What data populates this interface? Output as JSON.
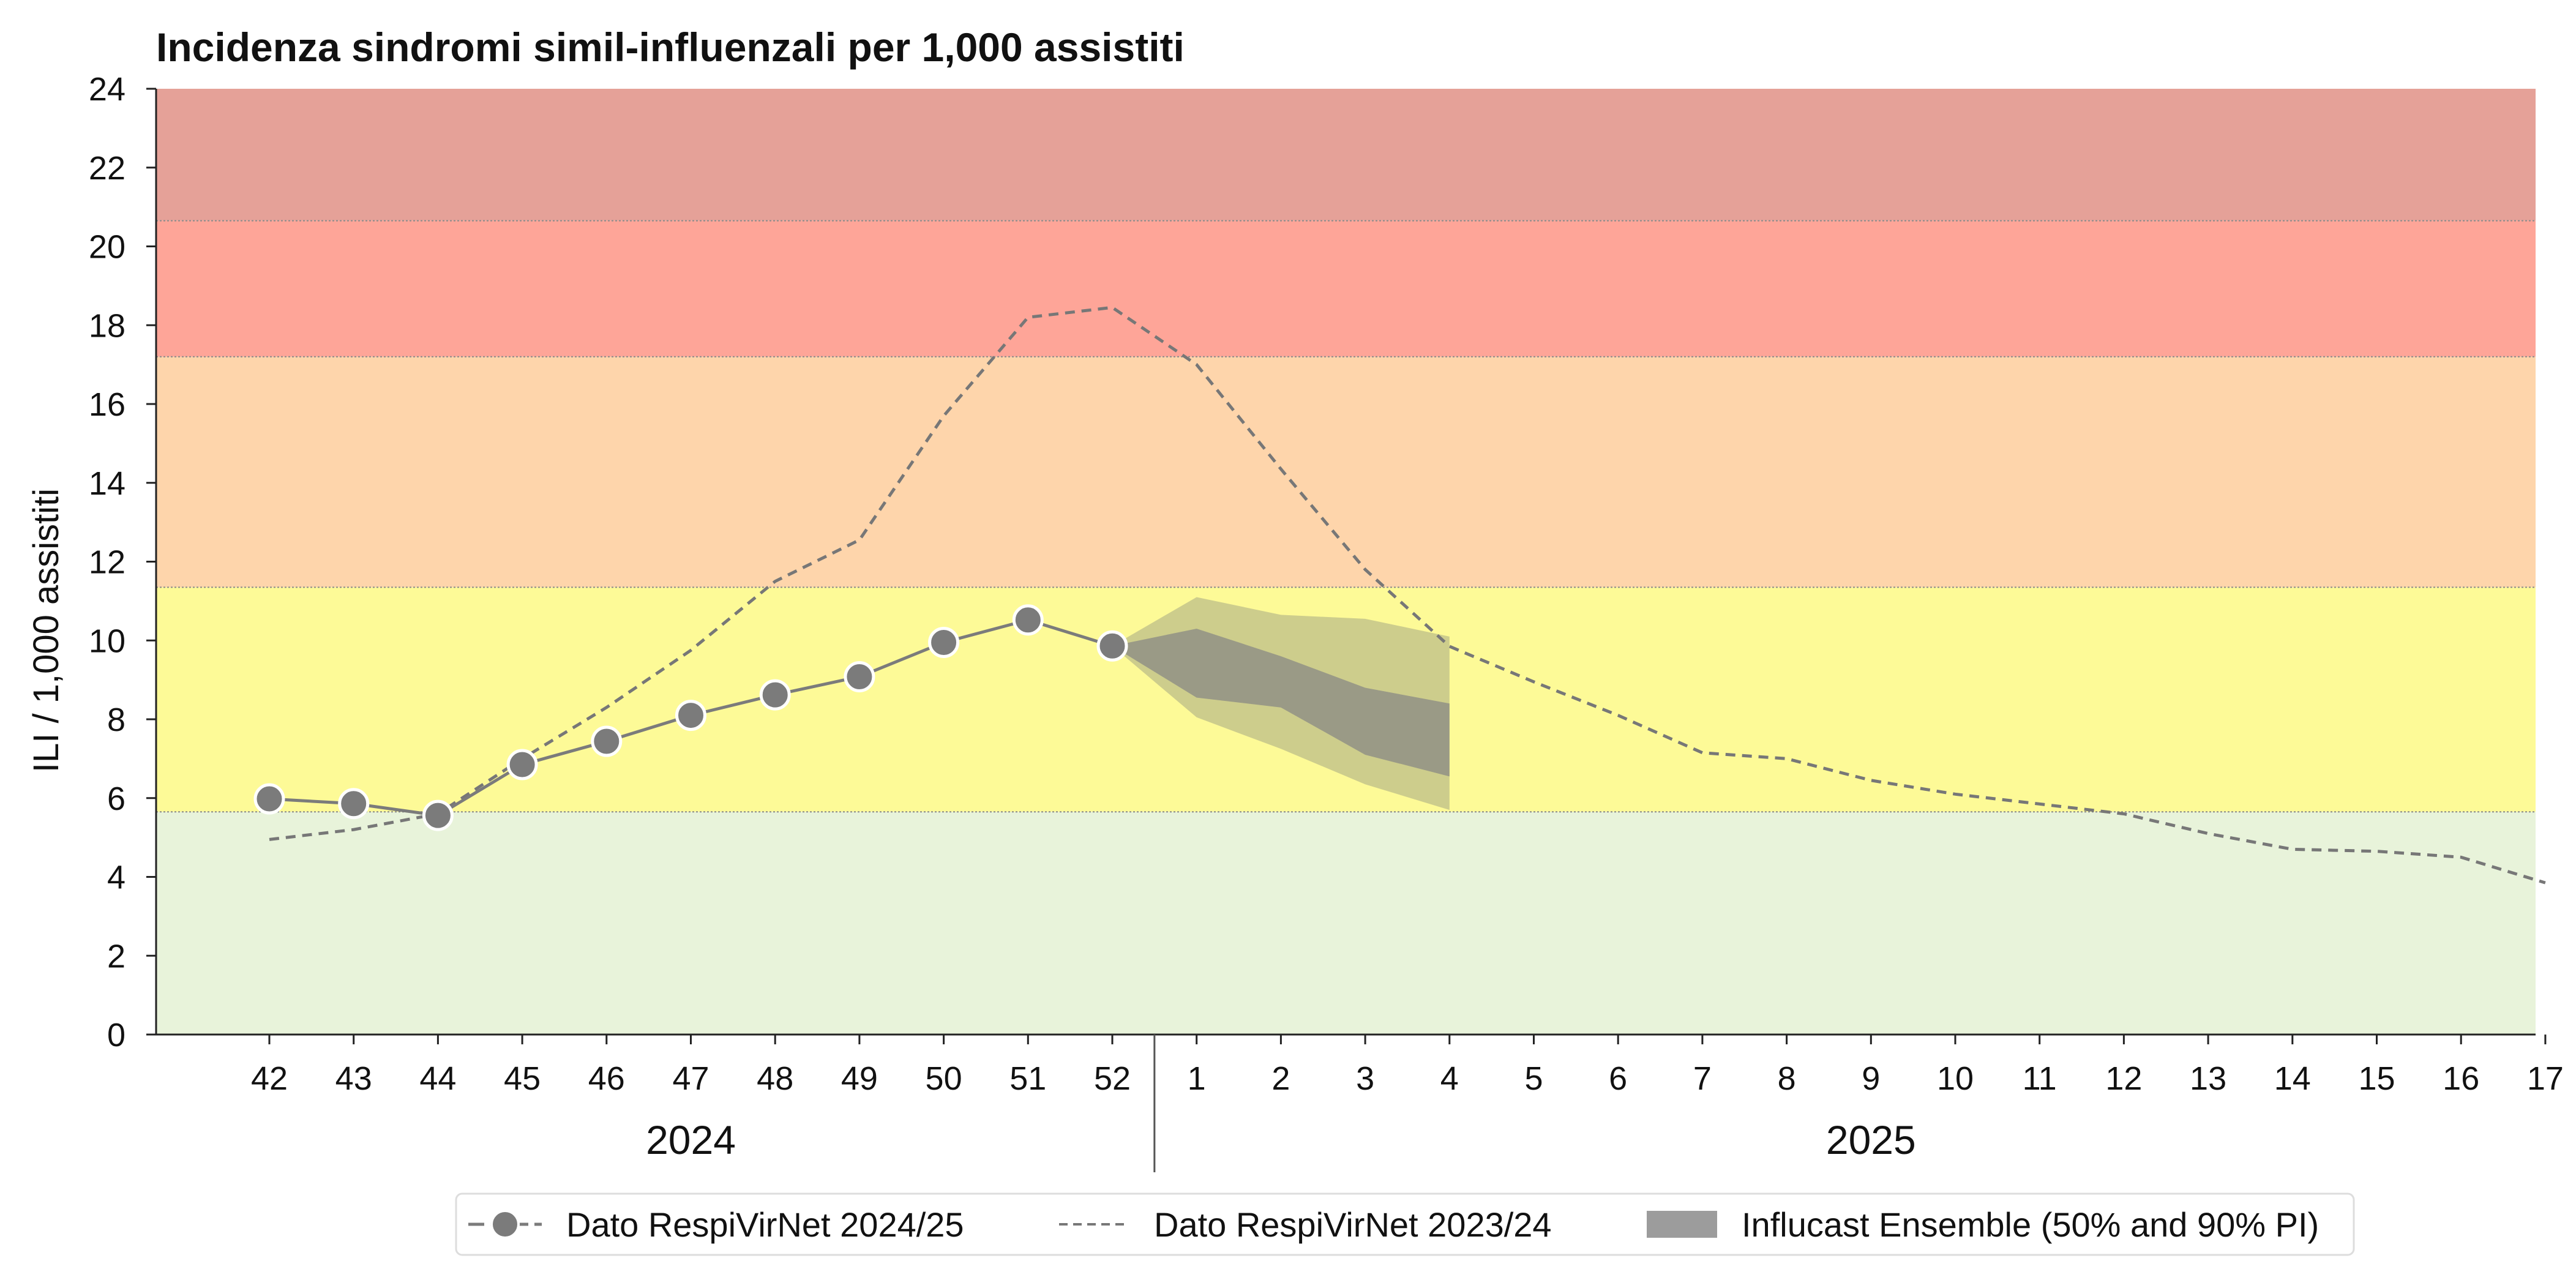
{
  "chart_data": {
    "type": "line",
    "title": "Incidenza sindromi simil-influenzali per 1,000 assistiti",
    "ylabel": "ILI / 1,000 assistiti",
    "xlabel": "",
    "ylim": [
      0,
      24
    ],
    "yticks": [
      "0",
      "2",
      "4",
      "6",
      "8",
      "10",
      "12",
      "14",
      "16",
      "18",
      "20",
      "22",
      "24"
    ],
    "x_ticks": [
      "42",
      "43",
      "44",
      "45",
      "46",
      "47",
      "48",
      "49",
      "50",
      "51",
      "52",
      "1",
      "2",
      "3",
      "4",
      "5",
      "6",
      "7",
      "8",
      "9",
      "10",
      "11",
      "12",
      "13",
      "14",
      "15",
      "16",
      "17"
    ],
    "years": [
      "2024",
      "2025"
    ],
    "grid": false,
    "legend_position": "bottom-center",
    "threshold_bands": [
      {
        "from": 0,
        "to": 5.65,
        "color": "#e8f3da"
      },
      {
        "from": 5.65,
        "to": 11.35,
        "color": "#fdfa97"
      },
      {
        "from": 11.35,
        "to": 17.2,
        "color": "#fed5ab"
      },
      {
        "from": 17.2,
        "to": 20.65,
        "color": "#fea598"
      },
      {
        "from": 20.65,
        "to": 24,
        "color": "#e5a198"
      }
    ],
    "series": [
      {
        "name": "Dato RespiVirNet 2024/25",
        "style": "solid-markers",
        "color": "#7b7b7b",
        "x": [
          "42",
          "43",
          "44",
          "45",
          "46",
          "47",
          "48",
          "49",
          "50",
          "51",
          "52"
        ],
        "values": [
          5.98,
          5.86,
          5.56,
          6.85,
          7.44,
          8.1,
          8.62,
          9.08,
          9.95,
          10.52,
          9.86
        ]
      },
      {
        "name": "Dato RespiVirNet 2023/24",
        "style": "dashed",
        "color": "#777777",
        "x": [
          "42",
          "43",
          "44",
          "45",
          "46",
          "47",
          "48",
          "49",
          "50",
          "51",
          "52",
          "1",
          "2",
          "3",
          "4",
          "5",
          "6",
          "7",
          "8",
          "9",
          "10",
          "11",
          "12",
          "13",
          "14",
          "15",
          "16",
          "17"
        ],
        "values": [
          4.95,
          5.2,
          5.6,
          7.0,
          8.3,
          9.75,
          11.5,
          12.55,
          15.7,
          18.2,
          18.45,
          17.0,
          14.35,
          11.8,
          9.85,
          8.95,
          8.1,
          7.15,
          7.0,
          6.45,
          6.1,
          5.85,
          5.6,
          5.1,
          4.7,
          4.65,
          4.5,
          3.85
        ]
      },
      {
        "name": "Influcast Ensemble (50% and 90% PI)",
        "style": "band",
        "color90": "#cdcd8c",
        "color50": "#9a9a86",
        "x": [
          "52",
          "1",
          "2",
          "3",
          "4"
        ],
        "lower90": [
          9.86,
          8.05,
          7.25,
          6.35,
          5.7
        ],
        "upper90": [
          9.86,
          11.1,
          10.65,
          10.55,
          10.1
        ],
        "lower50": [
          9.86,
          8.55,
          8.3,
          7.1,
          6.55
        ],
        "upper50": [
          9.86,
          10.3,
          9.6,
          8.8,
          8.4
        ]
      }
    ]
  }
}
